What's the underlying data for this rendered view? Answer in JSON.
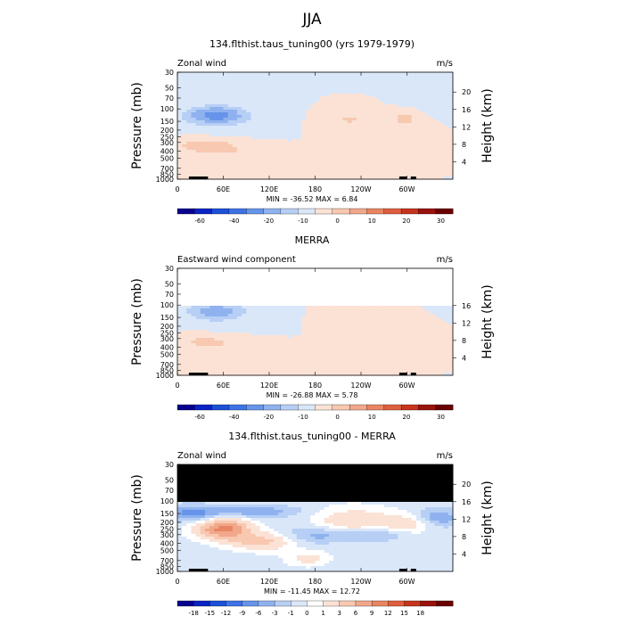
{
  "figure": {
    "title": "JJA",
    "colors": {
      "main_scale": [
        "#08008f",
        "#0a24c4",
        "#1c50d8",
        "#3d73e6",
        "#6694ea",
        "#8fb2ef",
        "#b7cff5",
        "#d9e7f9",
        "#fbe2d5",
        "#f8c8b0",
        "#f1a789",
        "#e98562",
        "#df5e3d",
        "#c6341d",
        "#9a120c",
        "#6a0000"
      ],
      "diff_scale": [
        "#08008f",
        "#0a24c4",
        "#1c50d8",
        "#3d73e6",
        "#6694ea",
        "#8fb2ef",
        "#b7cff5",
        "#d9e7f9",
        "#ffffff",
        "#fbe2d5",
        "#f8c8b0",
        "#f1a789",
        "#e98562",
        "#df5e3d",
        "#c6341d",
        "#9a120c",
        "#6a0000"
      ]
    }
  },
  "chart_data": [
    {
      "type": "heatmap",
      "title": "134.flthist.taus_tuning00 (yrs 1979-1979)",
      "left_label": "Zonal wind",
      "right_label": "m/s",
      "ylabel": "Pressure (mb)",
      "ylabel_right": "Height (km)",
      "x_ticks": [
        "0",
        "60E",
        "120E",
        "180",
        "120W",
        "60W"
      ],
      "y_ticks": [
        "30",
        "50",
        "70",
        "100",
        "150",
        "200",
        "250",
        "300",
        "400",
        "500",
        "700",
        "850",
        "1000"
      ],
      "height_ticks": [
        "20",
        "16",
        "12",
        "8",
        "4"
      ],
      "stats_text": "MIN = -36.52   MAX =   6.84",
      "min": -36.52,
      "max": 6.84,
      "ylim": [
        1000,
        30
      ],
      "colorbar_labels": [
        "-60",
        "-40",
        "-20",
        "-10",
        "0",
        "10",
        "20",
        "30"
      ]
    },
    {
      "type": "heatmap",
      "title": "MERRA",
      "left_label": "Eastward wind component",
      "right_label": "m/s",
      "ylabel": "Pressure (mb)",
      "ylabel_right": "Height (km)",
      "x_ticks": [
        "0",
        "60E",
        "120E",
        "180",
        "120W",
        "60W"
      ],
      "y_ticks": [
        "30",
        "50",
        "70",
        "100",
        "150",
        "200",
        "250",
        "300",
        "400",
        "500",
        "700",
        "850",
        "1000"
      ],
      "height_ticks": [
        "16",
        "12",
        "8",
        "4"
      ],
      "stats_text": "MIN = -26.88   MAX =   5.78",
      "min": -26.88,
      "max": 5.78,
      "ylim": [
        1000,
        30
      ],
      "colorbar_labels": [
        "-60",
        "-40",
        "-20",
        "-10",
        "0",
        "10",
        "20",
        "30"
      ]
    },
    {
      "type": "heatmap",
      "title": "134.flthist.taus_tuning00 - MERRA",
      "left_label": "Zonal wind",
      "right_label": "m/s",
      "ylabel": "Pressure (mb)",
      "ylabel_right": "Height (km)",
      "x_ticks": [
        "0",
        "60E",
        "120E",
        "180",
        "120W",
        "60W"
      ],
      "y_ticks": [
        "30",
        "50",
        "70",
        "100",
        "150",
        "200",
        "250",
        "300",
        "400",
        "500",
        "700",
        "850",
        "1000"
      ],
      "height_ticks": [
        "20",
        "16",
        "12",
        "8",
        "4"
      ],
      "stats_text": "MIN = -11.45   MAX =  12.72",
      "min": -11.45,
      "max": 12.72,
      "ylim": [
        1000,
        30
      ],
      "colorbar_labels": [
        "-18",
        "-15",
        "-12",
        "-9",
        "-6",
        "-3",
        "-1",
        "0",
        "1",
        "3",
        "6",
        "9",
        "12",
        "15",
        "18"
      ]
    }
  ]
}
